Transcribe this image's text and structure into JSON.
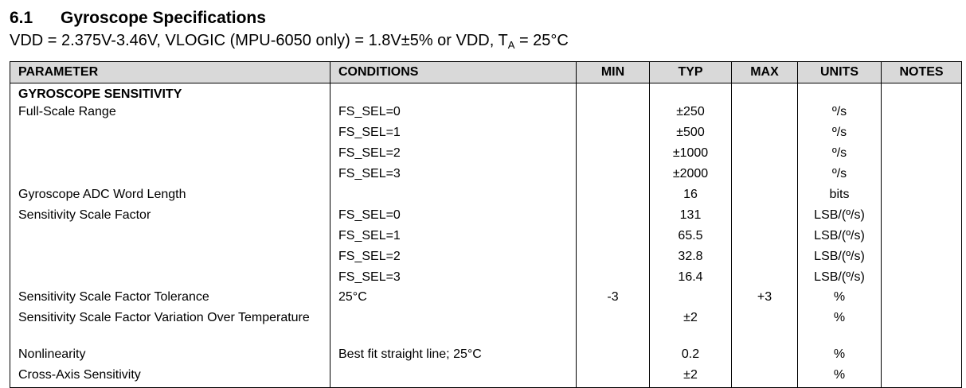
{
  "heading": {
    "number": "6.1",
    "title": "Gyroscope Specifications"
  },
  "conditions": {
    "prefix": "VDD = 2.375V-3.46V, VLOGIC (MPU-6050 only) = 1.8V±5% or VDD, T",
    "subscript": "A",
    "suffix": " = 25°C"
  },
  "table": {
    "headers": {
      "parameter": "PARAMETER",
      "conditions": "CONDITIONS",
      "min": "MIN",
      "typ": "TYP",
      "max": "MAX",
      "units": "UNITS",
      "notes": "NOTES"
    },
    "rows": [
      {
        "parameter": "GYROSCOPE SENSITIVITY",
        "conditions": "",
        "min": "",
        "typ": "",
        "max": "",
        "units": "",
        "notes": ""
      },
      {
        "parameter": "Full-Scale Range",
        "conditions": "FS_SEL=0",
        "min": "",
        "typ": "±250",
        "max": "",
        "units": "º/s",
        "notes": ""
      },
      {
        "parameter": "",
        "conditions": "FS_SEL=1",
        "min": "",
        "typ": "±500",
        "max": "",
        "units": "º/s",
        "notes": ""
      },
      {
        "parameter": "",
        "conditions": "FS_SEL=2",
        "min": "",
        "typ": "±1000",
        "max": "",
        "units": "º/s",
        "notes": ""
      },
      {
        "parameter": "",
        "conditions": "FS_SEL=3",
        "min": "",
        "typ": "±2000",
        "max": "",
        "units": "º/s",
        "notes": ""
      },
      {
        "parameter": "Gyroscope ADC Word Length",
        "conditions": "",
        "min": "",
        "typ": "16",
        "max": "",
        "units": "bits",
        "notes": ""
      },
      {
        "parameter": "Sensitivity Scale Factor",
        "conditions": "FS_SEL=0",
        "min": "",
        "typ": "131",
        "max": "",
        "units": "LSB/(º/s)",
        "notes": ""
      },
      {
        "parameter": "",
        "conditions": "FS_SEL=1",
        "min": "",
        "typ": "65.5",
        "max": "",
        "units": "LSB/(º/s)",
        "notes": ""
      },
      {
        "parameter": "",
        "conditions": "FS_SEL=2",
        "min": "",
        "typ": "32.8",
        "max": "",
        "units": "LSB/(º/s)",
        "notes": ""
      },
      {
        "parameter": "",
        "conditions": "FS_SEL=3",
        "min": "",
        "typ": "16.4",
        "max": "",
        "units": "LSB/(º/s)",
        "notes": ""
      },
      {
        "parameter": "Sensitivity Scale Factor Tolerance",
        "conditions": "25°C",
        "min": "-3",
        "typ": "",
        "max": "+3",
        "units": "%",
        "notes": ""
      },
      {
        "parameter": "Sensitivity Scale Factor Variation Over Temperature",
        "conditions": "",
        "min": "",
        "typ": "±2",
        "max": "",
        "units": "%",
        "notes": ""
      },
      {
        "parameter": "Nonlinearity",
        "conditions": "Best fit straight line; 25°C",
        "min": "",
        "typ": "0.2",
        "max": "",
        "units": "%",
        "notes": ""
      },
      {
        "parameter": "Cross-Axis Sensitivity",
        "conditions": "",
        "min": "",
        "typ": "±2",
        "max": "",
        "units": "%",
        "notes": ""
      }
    ]
  }
}
